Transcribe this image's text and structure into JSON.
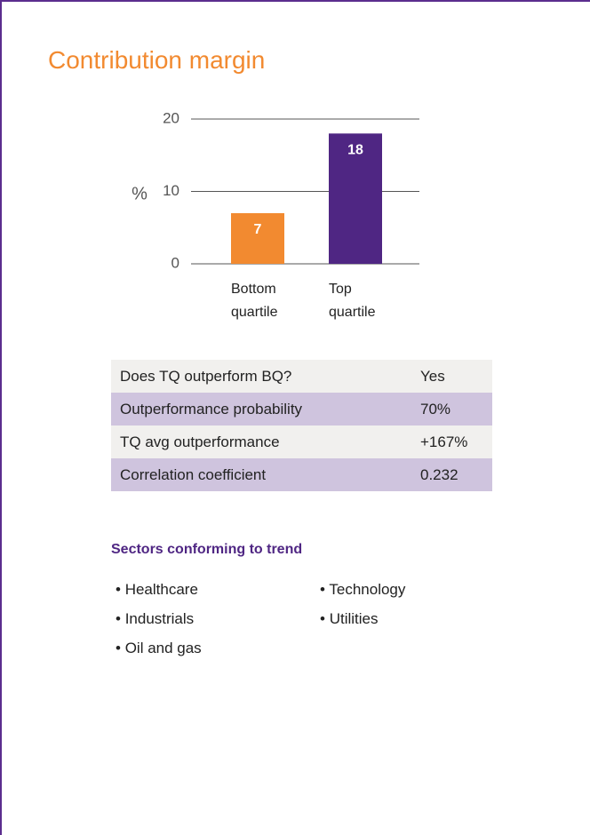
{
  "chart_data": {
    "type": "bar",
    "title": "Contribution margin",
    "y_label": "%",
    "categories": [
      "Bottom quartile",
      "Top quartile"
    ],
    "values": [
      7,
      18
    ],
    "colors": [
      "#f28a30",
      "#4f2683"
    ],
    "ylim": [
      0,
      20
    ],
    "yticks": [
      0,
      10,
      20
    ],
    "grid": true
  },
  "table": {
    "rows": [
      [
        "Does TQ outperform BQ?",
        "Yes"
      ],
      [
        "Outperformance probability",
        "70%"
      ],
      [
        "TQ avg outperformance",
        "+167%"
      ],
      [
        "Correlation coefficient",
        "0.232"
      ]
    ]
  },
  "sectors": {
    "title": "Sectors conforming to trend",
    "items": [
      "Healthcare",
      "Industrials",
      "Oil and gas",
      "Technology",
      "Utilities"
    ]
  }
}
